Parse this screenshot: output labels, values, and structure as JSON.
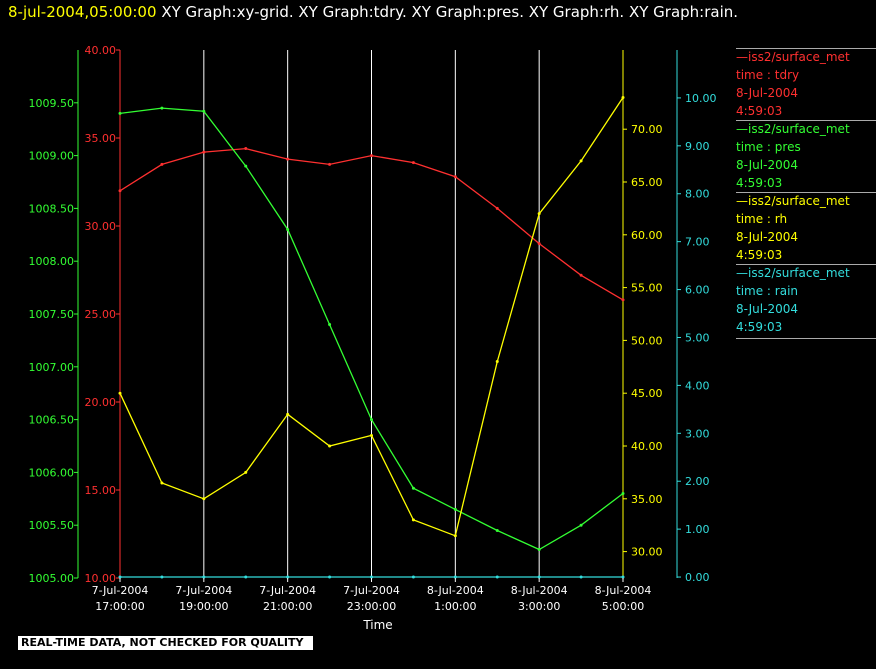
{
  "header": {
    "timestamp": "8-jul-2004,05:00:00",
    "titles": "XY Graph:xy-grid.  XY Graph:tdry.  XY Graph:pres.  XY Graph:rh.  XY Graph:rain."
  },
  "disclaimer": "REAL-TIME DATA, NOT CHECKED FOR QUALITY",
  "colors": {
    "tdry": "#ff3030",
    "pres": "#33ff33",
    "rh": "#ffff00",
    "rain": "#33dddd",
    "grid": "#ffffff"
  },
  "legend": [
    {
      "line": "—iss2/surface_met",
      "field": "time : tdry",
      "date": "8-Jul-2004",
      "time": "4:59:03",
      "color": "#ff3030"
    },
    {
      "line": "—iss2/surface_met",
      "field": "time : pres",
      "date": "8-Jul-2004",
      "time": "4:59:03",
      "color": "#33ff33"
    },
    {
      "line": "—iss2/surface_met",
      "field": "time : rh",
      "date": "8-Jul-2004",
      "time": "4:59:03",
      "color": "#ffff00"
    },
    {
      "line": "—iss2/surface_met",
      "field": "time : rain",
      "date": "8-Jul-2004",
      "time": "4:59:03",
      "color": "#33dddd"
    }
  ],
  "chart_data": {
    "type": "line",
    "xlabel": "Time",
    "x_ticks": [
      {
        "date": "7-Jul-2004",
        "time": "17:00:00"
      },
      {
        "date": "7-Jul-2004",
        "time": "19:00:00"
      },
      {
        "date": "7-Jul-2004",
        "time": "21:00:00"
      },
      {
        "date": "7-Jul-2004",
        "time": "23:00:00"
      },
      {
        "date": "8-Jul-2004",
        "time": "1:00:00"
      },
      {
        "date": "8-Jul-2004",
        "time": "3:00:00"
      },
      {
        "date": "8-Jul-2004",
        "time": "5:00:00"
      }
    ],
    "x": [
      "7-Jul-2004 17:00",
      "7-Jul-2004 18:00",
      "7-Jul-2004 19:00",
      "7-Jul-2004 20:00",
      "7-Jul-2004 21:00",
      "7-Jul-2004 22:00",
      "7-Jul-2004 23:00",
      "8-Jul-2004 00:00",
      "8-Jul-2004 01:00",
      "8-Jul-2004 02:00",
      "8-Jul-2004 03:00",
      "8-Jul-2004 04:00",
      "8-Jul-2004 05:00"
    ],
    "xlim": [
      "7-Jul-2004 17:00",
      "8-Jul-2004 05:00"
    ],
    "axes": {
      "pres": {
        "ylim": [
          1005.0,
          1010.0
        ],
        "ticks": [
          "1005.00",
          "1005.50",
          "1006.00",
          "1006.50",
          "1007.00",
          "1007.50",
          "1008.00",
          "1008.50",
          "1009.00",
          "1009.50"
        ]
      },
      "tdry": {
        "ylim": [
          10.0,
          40.0
        ],
        "ticks": [
          "10.00",
          "15.00",
          "20.00",
          "25.00",
          "30.00",
          "35.00",
          "40.00"
        ]
      },
      "rh": {
        "ylim": [
          27.5,
          77.5
        ],
        "ticks": [
          "30.00",
          "35.00",
          "40.00",
          "45.00",
          "50.00",
          "55.00",
          "60.00",
          "65.00",
          "70.00"
        ]
      },
      "rain": {
        "ylim": [
          -0.02,
          11.0
        ],
        "ticks": [
          "0.00",
          "1.00",
          "2.00",
          "3.00",
          "4.00",
          "5.00",
          "6.00",
          "7.00",
          "8.00",
          "9.00",
          "10.00"
        ]
      }
    },
    "series": [
      {
        "key": "tdry",
        "axis": "tdry",
        "values": [
          32.0,
          33.5,
          34.2,
          34.4,
          33.8,
          33.5,
          34.0,
          33.6,
          32.8,
          31.0,
          29.0,
          27.2,
          25.8
        ]
      },
      {
        "key": "pres",
        "axis": "pres",
        "values": [
          1009.4,
          1009.45,
          1009.42,
          1008.9,
          1008.3,
          1007.4,
          1006.5,
          1005.85,
          1005.65,
          1005.45,
          1005.27,
          1005.5,
          1005.8
        ]
      },
      {
        "key": "rh",
        "axis": "rh",
        "values": [
          45.0,
          36.5,
          35.0,
          37.5,
          43.0,
          40.0,
          41.0,
          33.0,
          31.5,
          48.0,
          62.0,
          67.0,
          73.0
        ]
      },
      {
        "key": "rain",
        "axis": "rain",
        "values": [
          0,
          0,
          0,
          0,
          0,
          0,
          0,
          0,
          0,
          0,
          0,
          0,
          0
        ]
      }
    ],
    "grid": true
  }
}
